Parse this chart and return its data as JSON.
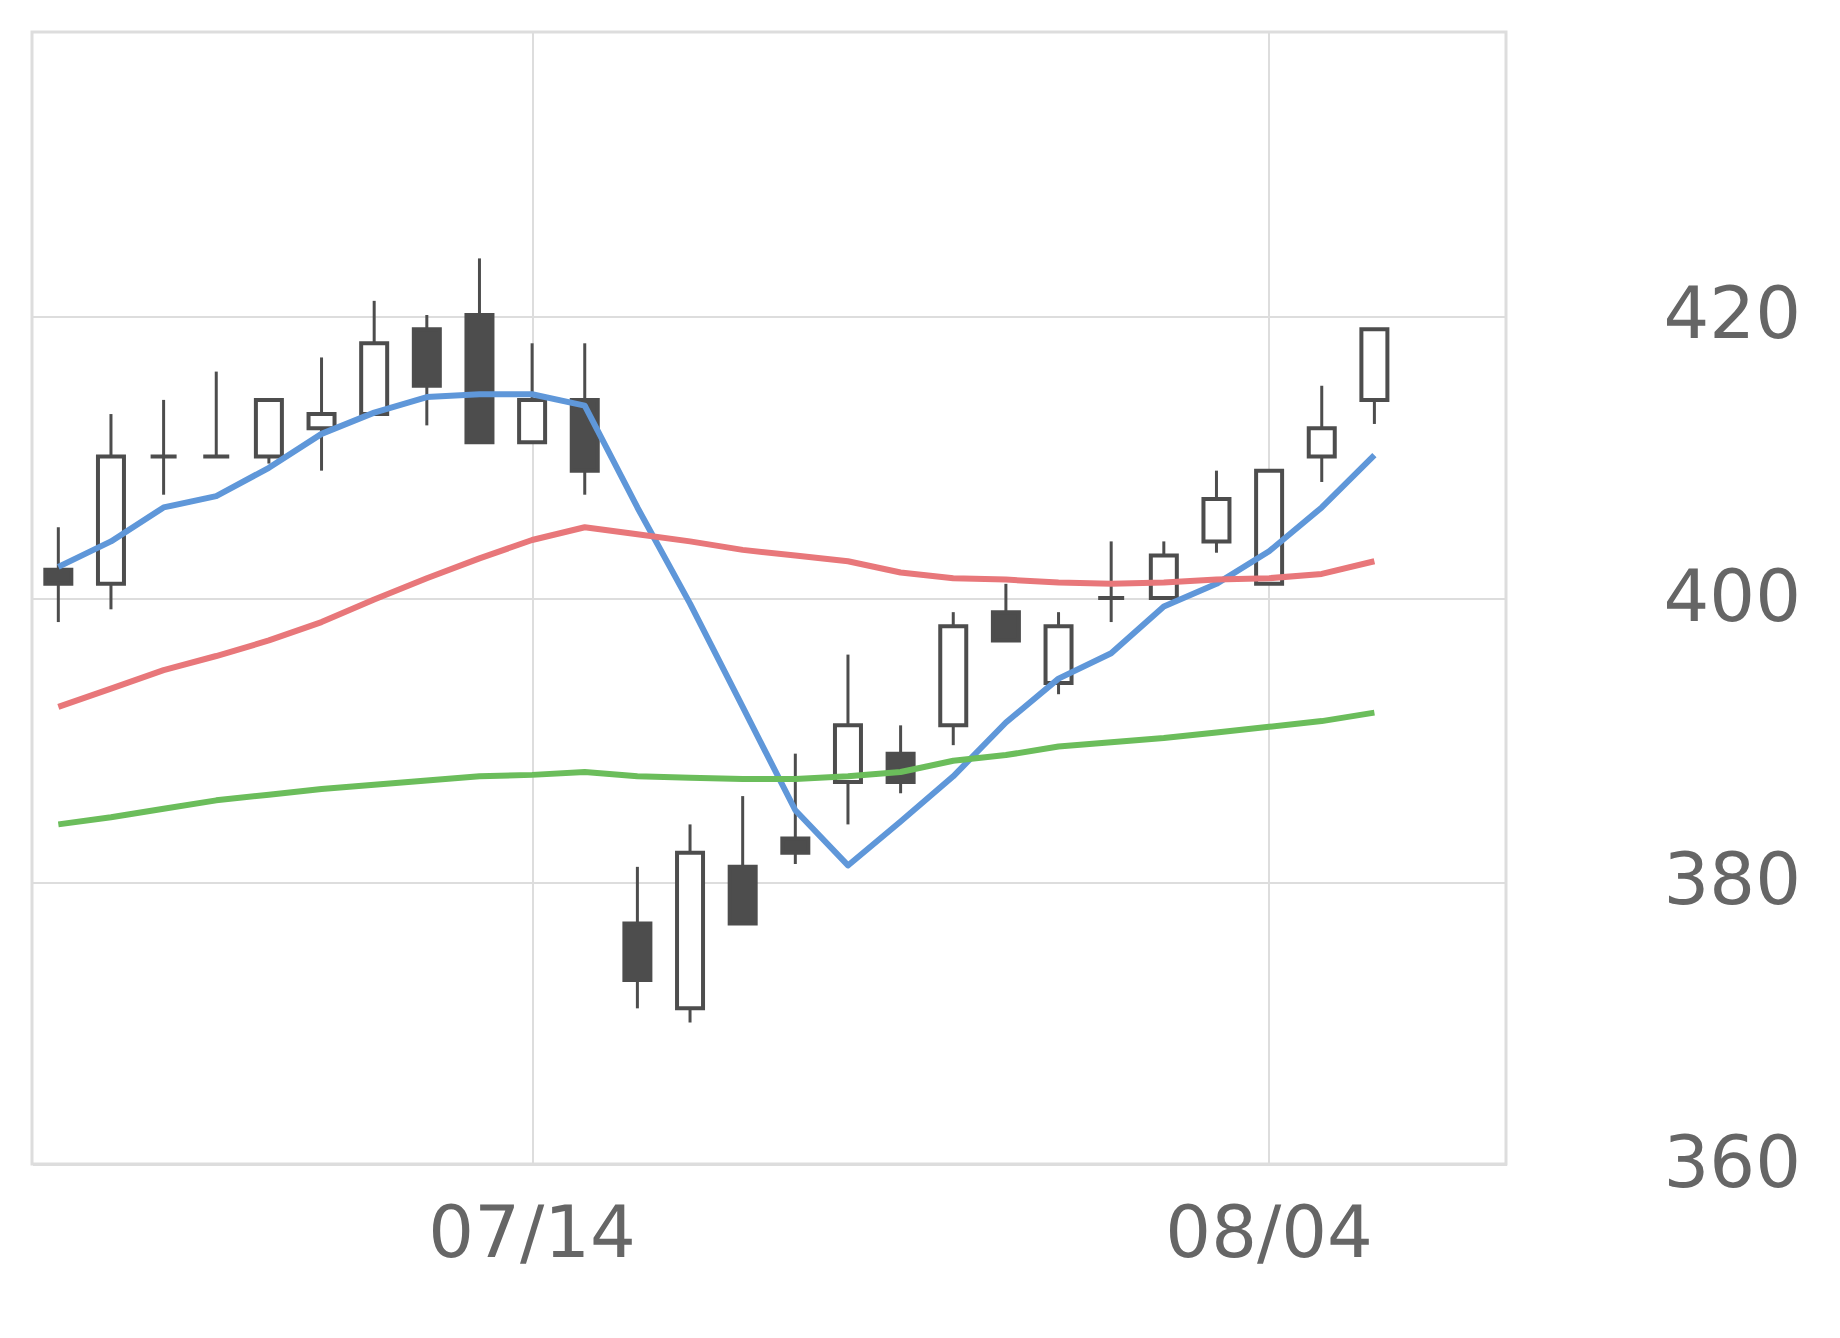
{
  "chart_data": {
    "type": "candlestick",
    "categories": [
      null,
      null,
      null,
      null,
      null,
      null,
      null,
      null,
      null,
      "07/14",
      null,
      null,
      null,
      null,
      null,
      null,
      null,
      null,
      null,
      null,
      null,
      null,
      null,
      "08/04",
      null,
      null
    ],
    "ohlc": [
      [
        402,
        405,
        398.3,
        401
      ],
      [
        401,
        413,
        399.2,
        410
      ],
      [
        410,
        414,
        407.3,
        410
      ],
      [
        410,
        416,
        410,
        410
      ],
      [
        410,
        414,
        409.5,
        414
      ],
      [
        412,
        417,
        409,
        413
      ],
      [
        413,
        421,
        413,
        418
      ],
      [
        419,
        420,
        412.2,
        415
      ],
      [
        420,
        424,
        411,
        411
      ],
      [
        411,
        418,
        411,
        414
      ],
      [
        414,
        418,
        407.3,
        409
      ],
      [
        377,
        381,
        371,
        373
      ],
      [
        371,
        384,
        370,
        382
      ],
      [
        381,
        386,
        377,
        377
      ],
      [
        383,
        389,
        381.2,
        382
      ],
      [
        387,
        396,
        384,
        391
      ],
      [
        389,
        391,
        386.2,
        387
      ],
      [
        391,
        399,
        389.6,
        398
      ],
      [
        399,
        401,
        397,
        397
      ],
      [
        394,
        399,
        393.2,
        398
      ],
      [
        400,
        404,
        398.3,
        400
      ],
      [
        400,
        404,
        400,
        403
      ],
      [
        404,
        409,
        403.2,
        407
      ],
      [
        401,
        409,
        401,
        409
      ],
      [
        410,
        415,
        408.2,
        412
      ],
      [
        414,
        419,
        412.3,
        419
      ]
    ],
    "series": [
      {
        "type": "line",
        "color": "#5f97d9",
        "values": [
          402.2,
          404,
          406.4,
          407.2,
          409.2,
          411.6,
          413.1,
          414.2,
          414.4,
          414.4,
          413.6,
          406.4,
          399.6,
          392.3,
          385,
          381.1,
          384.2,
          387.4,
          391.2,
          394.3,
          396.1,
          399.4,
          401,
          403.3,
          406.4,
          410.1
        ]
      },
      {
        "type": "line",
        "color": "#e8777a",
        "values": [
          392.3,
          393.6,
          394.9,
          395.9,
          397,
          398.3,
          399.9,
          401.4,
          402.8,
          404.1,
          405,
          404.5,
          404,
          403.4,
          403,
          402.6,
          401.8,
          401.4,
          401.3,
          401.1,
          401,
          401.1,
          401.3,
          401.4,
          401.7,
          402.6
        ]
      },
      {
        "type": "line",
        "color": "#6bbd5b",
        "values": [
          384,
          384.5,
          385.1,
          385.7,
          386.1,
          386.5,
          386.8,
          387.1,
          387.4,
          387.5,
          387.7,
          387.4,
          387.3,
          387.2,
          387.2,
          387.4,
          387.7,
          388.5,
          388.9,
          389.5,
          389.8,
          390.1,
          390.5,
          390.9,
          391.3,
          391.9
        ]
      }
    ],
    "ylim": [
      360,
      440
    ],
    "yticks": [
      360,
      380,
      400,
      420
    ],
    "grid": true
  }
}
